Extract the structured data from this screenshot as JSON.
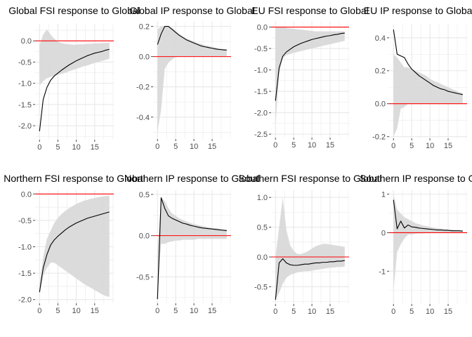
{
  "figure": {
    "background": "#ffffff",
    "panel_background": "#ffffff"
  },
  "style": {
    "grid_color": "#e8e8e8",
    "band_color": "#d9d9d9",
    "line_color": "#000000",
    "zero_line_color": "#ff0000",
    "tick_color": "#4d4d4d"
  },
  "chart_data": [
    {
      "type": "line",
      "title": "Global FSI response to Global",
      "x": [
        0,
        1,
        2,
        3,
        4,
        5,
        6,
        7,
        8,
        9,
        10,
        11,
        12,
        13,
        14,
        15,
        16,
        17,
        18,
        19
      ],
      "series": [
        {
          "values": [
            -2.13,
            -1.38,
            -1.1,
            -0.93,
            -0.83,
            -0.76,
            -0.69,
            -0.63,
            -0.57,
            -0.52,
            -0.47,
            -0.43,
            -0.39,
            -0.35,
            -0.32,
            -0.29,
            -0.27,
            -0.25,
            -0.22,
            -0.2
          ]
        }
      ],
      "band": {
        "lower": [
          -1.05,
          -0.95,
          -0.88,
          -0.85,
          -0.82,
          -0.8,
          -0.78,
          -0.75,
          -0.72,
          -0.69,
          -0.66,
          -0.63,
          -0.6,
          -0.58,
          -0.55,
          -0.52,
          -0.5,
          -0.47,
          -0.45,
          -0.42
        ],
        "upper": [
          -0.1,
          0.15,
          0.27,
          0.15,
          0.05,
          -0.02,
          -0.05,
          -0.07,
          -0.08,
          -0.09,
          -0.09,
          -0.08,
          -0.08,
          -0.07,
          -0.07,
          -0.06,
          -0.06,
          -0.05,
          -0.05,
          -0.04
        ]
      },
      "xlim": [
        -1.2,
        20.2
      ],
      "ylim": [
        -2.33,
        0.4
      ],
      "xticks": [
        0,
        5,
        10,
        15
      ],
      "yticks": [
        0,
        -0.5,
        -1,
        -1.5,
        -2
      ],
      "ytick_labels": [
        "0.0",
        "-0.5",
        "-1.0",
        "-1.5",
        "-2.0"
      ],
      "grid": true
    },
    {
      "type": "line",
      "title": "Global IP response to Global",
      "x": [
        0,
        1,
        2,
        3,
        4,
        5,
        6,
        7,
        8,
        9,
        10,
        11,
        12,
        13,
        14,
        15,
        16,
        17,
        18,
        19
      ],
      "series": [
        {
          "values": [
            0.08,
            0.15,
            0.2,
            0.2,
            0.18,
            0.16,
            0.14,
            0.125,
            0.11,
            0.1,
            0.09,
            0.08,
            0.07,
            0.065,
            0.06,
            0.055,
            0.05,
            0.047,
            0.045,
            0.043
          ]
        }
      ],
      "band": {
        "lower": [
          -0.5,
          -0.35,
          -0.08,
          -0.04,
          -0.02,
          0.0,
          0.0,
          0.0,
          0.0,
          0.0,
          0.0,
          0.0,
          0.0,
          0.0,
          0.0,
          0.0,
          0.0,
          0.0,
          0.0,
          0.0
        ],
        "upper": [
          0.18,
          0.2,
          0.2,
          0.2,
          0.19,
          0.17,
          0.15,
          0.135,
          0.12,
          0.11,
          0.1,
          0.09,
          0.085,
          0.075,
          0.07,
          0.065,
          0.06,
          0.055,
          0.05,
          0.048
        ]
      },
      "xlim": [
        -1.2,
        20.2
      ],
      "ylim": [
        -0.545,
        0.235
      ],
      "xticks": [
        0,
        5,
        10,
        15
      ],
      "yticks": [
        0.2,
        0,
        -0.2,
        -0.4
      ],
      "ytick_labels": [
        "0.2",
        "0.0",
        "-0.2",
        "-0.4"
      ],
      "grid": true
    },
    {
      "type": "line",
      "title": "EU FSI response to Global",
      "x": [
        0,
        1,
        2,
        3,
        4,
        5,
        6,
        7,
        8,
        9,
        10,
        11,
        12,
        13,
        14,
        15,
        16,
        17,
        18,
        19
      ],
      "series": [
        {
          "values": [
            -1.72,
            -0.95,
            -0.68,
            -0.58,
            -0.52,
            -0.46,
            -0.42,
            -0.38,
            -0.35,
            -0.32,
            -0.29,
            -0.27,
            -0.25,
            -0.23,
            -0.21,
            -0.2,
            -0.18,
            -0.17,
            -0.15,
            -0.14
          ]
        }
      ],
      "band": {
        "lower": [
          -2.3,
          -1.1,
          -0.72,
          -0.65,
          -0.63,
          -0.6,
          -0.58,
          -0.56,
          -0.54,
          -0.52,
          -0.5,
          -0.48,
          -0.46,
          -0.44,
          -0.42,
          -0.4,
          -0.38,
          -0.36,
          -0.34,
          -0.32
        ],
        "upper": [
          0.0,
          0.0,
          0.0,
          -0.02,
          -0.03,
          -0.04,
          -0.05,
          -0.06,
          -0.07,
          -0.08,
          -0.09,
          -0.1,
          -0.1,
          -0.1,
          -0.1,
          -0.1,
          -0.1,
          -0.1,
          -0.1,
          -0.1
        ]
      },
      "xlim": [
        -1.2,
        20.2
      ],
      "ylim": [
        -2.58,
        0.14
      ],
      "xticks": [
        0,
        5,
        10,
        15
      ],
      "yticks": [
        0,
        -0.5,
        -1,
        -1.5,
        -2,
        -2.5
      ],
      "ytick_labels": [
        "0.0",
        "-0.5",
        "-1.0",
        "-1.5",
        "-2.0",
        "-2.5"
      ],
      "grid": true
    },
    {
      "type": "line",
      "title": "EU IP response to Global FSI",
      "x": [
        0,
        1,
        2,
        3,
        4,
        5,
        6,
        7,
        8,
        9,
        10,
        11,
        12,
        13,
        14,
        15,
        16,
        17,
        18,
        19
      ],
      "series": [
        {
          "values": [
            0.45,
            0.3,
            0.29,
            0.28,
            0.24,
            0.21,
            0.19,
            0.17,
            0.155,
            0.14,
            0.125,
            0.11,
            0.1,
            0.09,
            0.085,
            0.075,
            0.07,
            0.065,
            0.06,
            0.055
          ]
        }
      ],
      "band": {
        "lower": [
          -0.2,
          -0.15,
          -0.03,
          -0.02,
          0.0,
          0.0,
          0.0,
          0.0,
          0.0,
          0.0,
          0.0,
          0.0,
          0.0,
          0.0,
          0.0,
          0.0,
          0.0,
          0.0,
          0.0,
          0.0
        ],
        "upper": [
          0.3,
          0.28,
          0.25,
          0.22,
          0.22,
          0.21,
          0.2,
          0.19,
          0.18,
          0.17,
          0.15,
          0.14,
          0.13,
          0.12,
          0.11,
          0.1,
          0.09,
          0.08,
          0.07,
          0.065
        ]
      },
      "xlim": [
        -1.2,
        20.2
      ],
      "ylim": [
        -0.21,
        0.48
      ],
      "xticks": [
        0,
        5,
        10,
        15
      ],
      "yticks": [
        0.4,
        0.2,
        0,
        -0.2
      ],
      "ytick_labels": [
        "0.4",
        "0.2",
        "0.0",
        "-0.2"
      ],
      "grid": true
    },
    {
      "type": "line",
      "title": "Northern FSI response to Global",
      "x": [
        0,
        1,
        2,
        3,
        4,
        5,
        6,
        7,
        8,
        9,
        10,
        11,
        12,
        13,
        14,
        15,
        16,
        17,
        18,
        19
      ],
      "series": [
        {
          "values": [
            -1.86,
            -1.4,
            -1.15,
            -0.97,
            -0.87,
            -0.8,
            -0.74,
            -0.68,
            -0.63,
            -0.59,
            -0.55,
            -0.52,
            -0.49,
            -0.46,
            -0.44,
            -0.42,
            -0.4,
            -0.38,
            -0.36,
            -0.34
          ]
        }
      ],
      "band": {
        "lower": [
          -1.9,
          -1.55,
          -1.4,
          -1.3,
          -1.3,
          -1.35,
          -1.4,
          -1.45,
          -1.5,
          -1.55,
          -1.6,
          -1.65,
          -1.7,
          -1.74,
          -1.78,
          -1.82,
          -1.86,
          -1.9,
          -1.93,
          -1.95
        ],
        "upper": [
          -1.7,
          -1.2,
          -0.85,
          -0.7,
          -0.55,
          -0.45,
          -0.38,
          -0.32,
          -0.27,
          -0.23,
          -0.19,
          -0.16,
          -0.13,
          -0.11,
          -0.09,
          -0.08,
          -0.06,
          -0.05,
          -0.04,
          -0.03
        ]
      },
      "xlim": [
        -1.2,
        20.2
      ],
      "ylim": [
        -2.07,
        0.07
      ],
      "xticks": [
        0,
        5,
        10,
        15
      ],
      "yticks": [
        0,
        -0.5,
        -1,
        -1.5,
        -2
      ],
      "ytick_labels": [
        "0.0",
        "-0.5",
        "-1.0",
        "-1.5",
        "-2.0"
      ],
      "grid": true
    },
    {
      "type": "line",
      "title": "Northern IP response to Global",
      "x": [
        0,
        1,
        2,
        3,
        4,
        5,
        6,
        7,
        8,
        9,
        10,
        11,
        12,
        13,
        14,
        15,
        16,
        17,
        18,
        19
      ],
      "series": [
        {
          "values": [
            -0.77,
            0.46,
            0.33,
            0.24,
            0.21,
            0.19,
            0.17,
            0.15,
            0.14,
            0.125,
            0.115,
            0.105,
            0.095,
            0.09,
            0.085,
            0.08,
            0.075,
            0.07,
            0.065,
            0.06
          ]
        }
      ],
      "band": {
        "lower": [
          -0.77,
          -0.1,
          -0.1,
          -0.08,
          -0.07,
          -0.06,
          -0.06,
          -0.05,
          -0.05,
          -0.05,
          -0.05,
          -0.04,
          -0.04,
          -0.04,
          -0.04,
          -0.04,
          -0.04,
          -0.04,
          -0.04,
          -0.04
        ],
        "upper": [
          -0.2,
          0.46,
          0.42,
          0.33,
          0.27,
          0.24,
          0.21,
          0.19,
          0.17,
          0.155,
          0.14,
          0.13,
          0.12,
          0.11,
          0.1,
          0.095,
          0.09,
          0.085,
          0.08,
          0.075
        ]
      },
      "xlim": [
        -1.2,
        20.2
      ],
      "ylim": [
        -0.82,
        0.55
      ],
      "xticks": [
        0,
        5,
        10,
        15
      ],
      "yticks": [
        0.5,
        0,
        -0.5
      ],
      "ytick_labels": [
        "0.5",
        "0.0",
        "-0.5"
      ],
      "grid": true
    },
    {
      "type": "line",
      "title": "Southern FSI response to Global",
      "x": [
        0,
        1,
        2,
        3,
        4,
        5,
        6,
        7,
        8,
        9,
        10,
        11,
        12,
        13,
        14,
        15,
        16,
        17,
        18,
        19
      ],
      "series": [
        {
          "values": [
            -0.72,
            -0.1,
            -0.03,
            -0.1,
            -0.13,
            -0.14,
            -0.14,
            -0.13,
            -0.12,
            -0.12,
            -0.11,
            -0.1,
            -0.1,
            -0.09,
            -0.09,
            -0.08,
            -0.08,
            -0.07,
            -0.07,
            -0.06
          ]
        }
      ],
      "band": {
        "lower": [
          -0.72,
          -0.6,
          -0.45,
          -0.35,
          -0.3,
          -0.28,
          -0.26,
          -0.25,
          -0.24,
          -0.24,
          -0.23,
          -0.22,
          -0.21,
          -0.2,
          -0.19,
          -0.18,
          -0.18,
          -0.17,
          -0.17,
          -0.16
        ],
        "upper": [
          0.0,
          0.5,
          1.0,
          0.45,
          0.2,
          0.1,
          0.05,
          0.05,
          0.07,
          0.1,
          0.14,
          0.18,
          0.2,
          0.22,
          0.22,
          0.21,
          0.2,
          0.19,
          0.18,
          0.17
        ]
      },
      "xlim": [
        -1.2,
        20.2
      ],
      "ylim": [
        -0.79,
        1.12
      ],
      "xticks": [
        0,
        5,
        10,
        15
      ],
      "yticks": [
        1,
        0.5,
        0,
        -0.5
      ],
      "ytick_labels": [
        "1.0",
        "0.5",
        "0.0",
        "-0.5"
      ],
      "grid": true
    },
    {
      "type": "line",
      "title": "Southern IP response to Global",
      "x": [
        0,
        1,
        2,
        3,
        4,
        5,
        6,
        7,
        8,
        9,
        10,
        11,
        12,
        13,
        14,
        15,
        16,
        17,
        18,
        19
      ],
      "series": [
        {
          "values": [
            0.85,
            0.1,
            0.3,
            0.12,
            0.2,
            0.15,
            0.14,
            0.12,
            0.11,
            0.1,
            0.09,
            0.08,
            0.07,
            0.07,
            0.06,
            0.06,
            0.05,
            0.05,
            0.05,
            0.04
          ]
        }
      ],
      "band": {
        "lower": [
          -1.5,
          -0.5,
          -0.3,
          -0.15,
          -0.05,
          -0.05,
          -0.03,
          -0.02,
          -0.02,
          -0.01,
          -0.01,
          0.0,
          0.0,
          0.0,
          0.0,
          0.0,
          0.0,
          0.0,
          0.0,
          0.0
        ],
        "upper": [
          1.0,
          0.6,
          0.5,
          0.4,
          0.35,
          0.3,
          0.25,
          0.22,
          0.19,
          0.17,
          0.15,
          0.13,
          0.12,
          0.11,
          0.1,
          0.09,
          0.08,
          0.07,
          0.065,
          0.06
        ]
      },
      "xlim": [
        -1.2,
        20.2
      ],
      "ylim": [
        -1.85,
        1.1
      ],
      "xticks": [
        0,
        5,
        10,
        15
      ],
      "yticks": [
        1,
        0,
        -1
      ],
      "ytick_labels": [
        "1",
        "0",
        "-1"
      ],
      "grid": true
    }
  ]
}
